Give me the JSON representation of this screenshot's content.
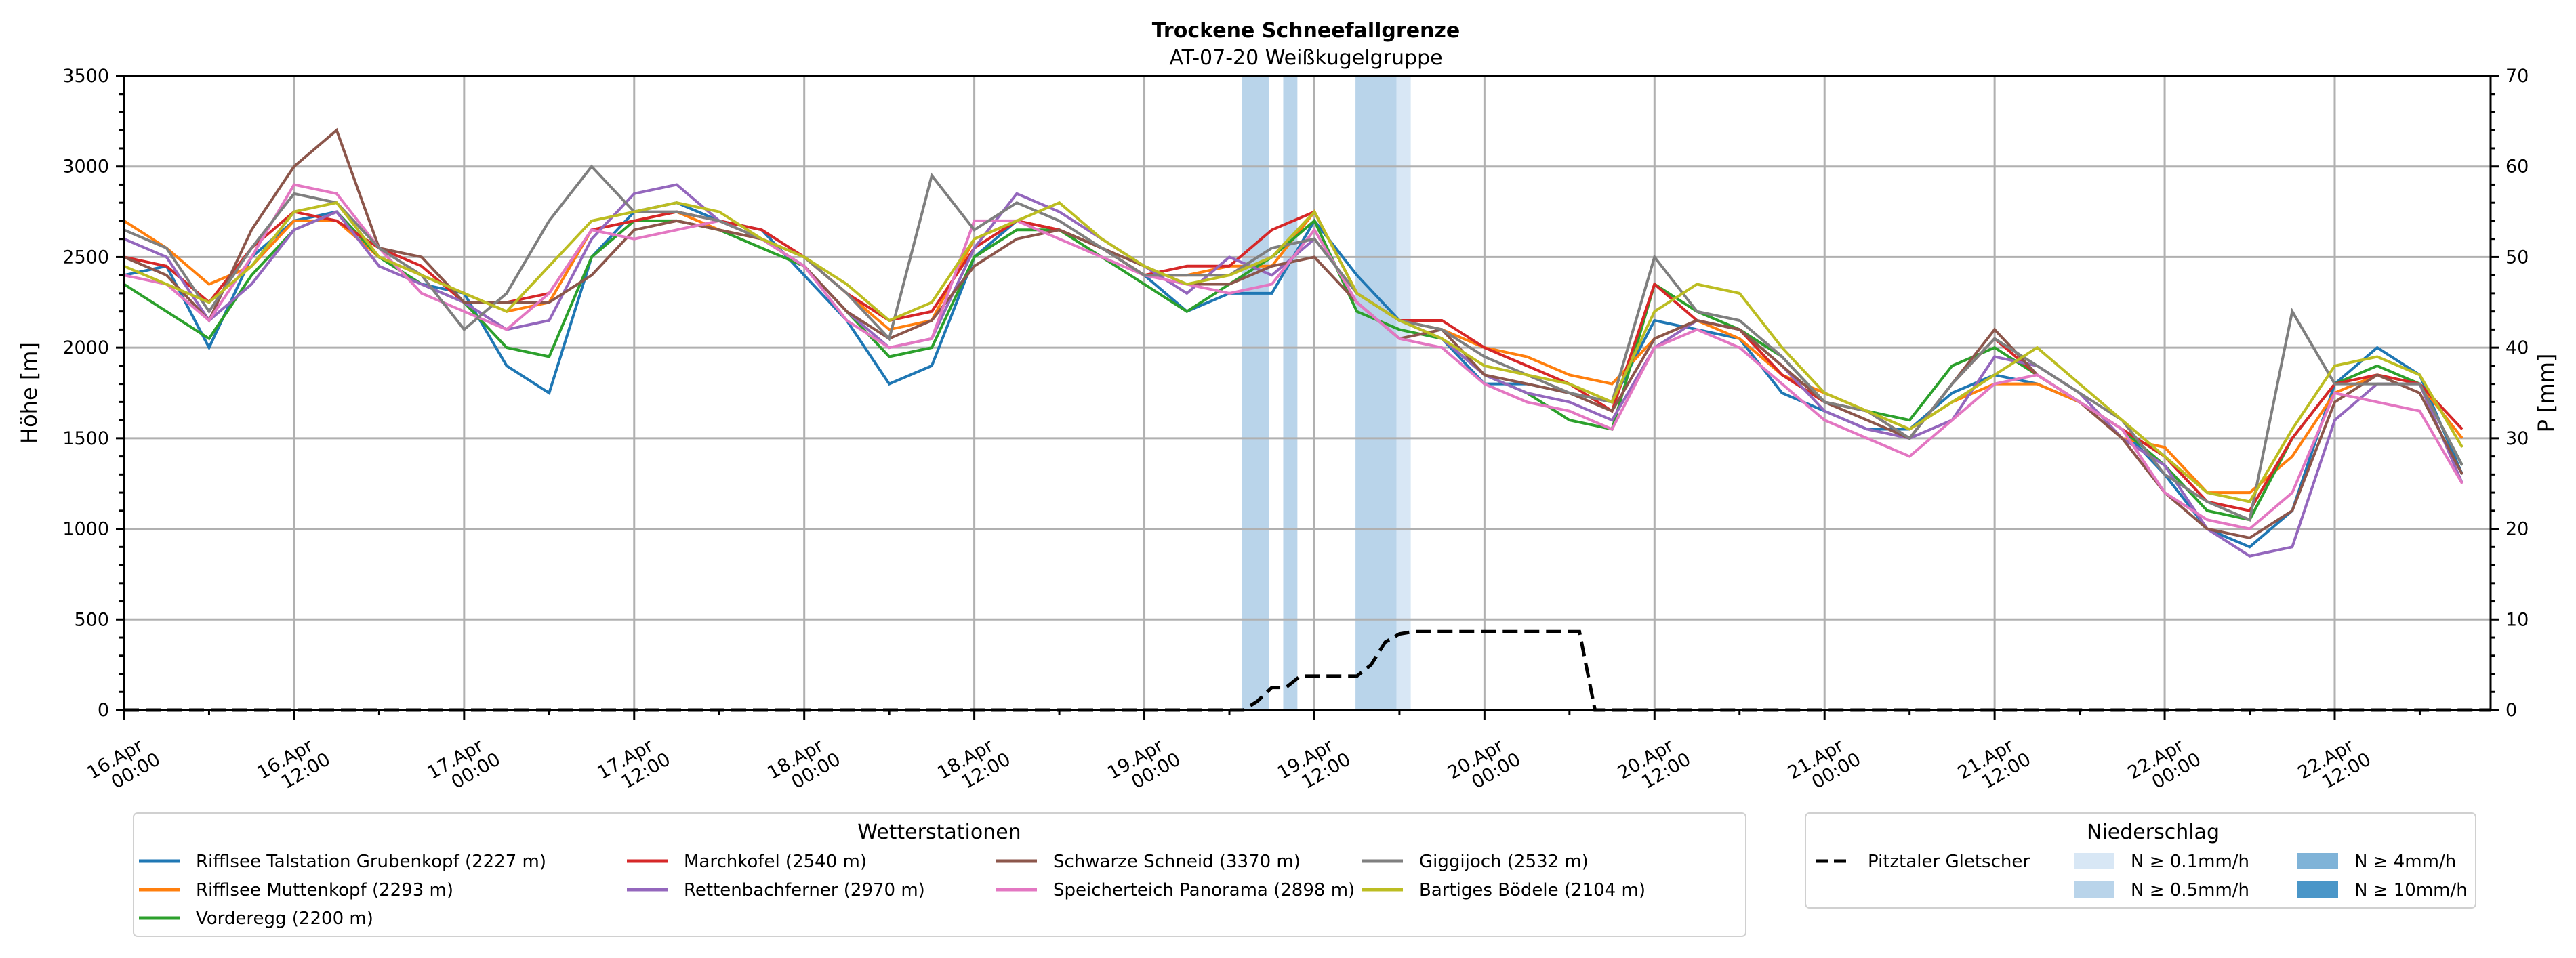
{
  "chart_data": {
    "type": "line",
    "title": "Trockene Schneefallgrenze",
    "subtitle": "AT-07-20 Weißkugelgruppe",
    "ylabel": "Höhe [m]",
    "y2label": "P [mm]",
    "ylim": [
      0,
      3500
    ],
    "y2lim": [
      0,
      70
    ],
    "yticks": [
      0,
      500,
      1000,
      1500,
      2000,
      2500,
      3000,
      3500
    ],
    "y2ticks": [
      0,
      10,
      20,
      30,
      40,
      50,
      60,
      70
    ],
    "grid": true,
    "x_unit": "hours since 16.Apr 00:00",
    "xlim_hours": [
      0,
      167
    ],
    "xticks": [
      {
        "hours": 0,
        "label": [
          "16.Apr",
          "00:00"
        ]
      },
      {
        "hours": 12,
        "label": [
          "16.Apr",
          "12:00"
        ]
      },
      {
        "hours": 24,
        "label": [
          "17.Apr",
          "00:00"
        ]
      },
      {
        "hours": 36,
        "label": [
          "17.Apr",
          "12:00"
        ]
      },
      {
        "hours": 48,
        "label": [
          "18.Apr",
          "00:00"
        ]
      },
      {
        "hours": 60,
        "label": [
          "18.Apr",
          "12:00"
        ]
      },
      {
        "hours": 72,
        "label": [
          "19.Apr",
          "00:00"
        ]
      },
      {
        "hours": 84,
        "label": [
          "19.Apr",
          "12:00"
        ]
      },
      {
        "hours": 96,
        "label": [
          "20.Apr",
          "00:00"
        ]
      },
      {
        "hours": 108,
        "label": [
          "20.Apr",
          "12:00"
        ]
      },
      {
        "hours": 120,
        "label": [
          "21.Apr",
          "00:00"
        ]
      },
      {
        "hours": 132,
        "label": [
          "21.Apr",
          "12:00"
        ]
      },
      {
        "hours": 144,
        "label": [
          "22.Apr",
          "00:00"
        ]
      },
      {
        "hours": 156,
        "label": [
          "22.Apr",
          "12:00"
        ]
      }
    ],
    "x_hours": [
      0,
      3,
      6,
      9,
      12,
      15,
      18,
      21,
      24,
      27,
      30,
      33,
      36,
      39,
      42,
      45,
      48,
      51,
      54,
      57,
      60,
      63,
      66,
      69,
      72,
      75,
      78,
      81,
      84,
      87,
      90,
      93,
      96,
      99,
      102,
      105,
      108,
      111,
      114,
      117,
      120,
      123,
      126,
      129,
      132,
      135,
      138,
      141,
      144,
      147,
      150,
      153,
      156,
      159,
      162,
      165
    ],
    "series": [
      {
        "name": "Rifflsee Talstation Grubenkopf (2227 m)",
        "color": "#1f77b4",
        "values": [
          2400,
          2450,
          2000,
          2500,
          2700,
          2750,
          2500,
          2350,
          2300,
          1900,
          1750,
          2500,
          2750,
          2800,
          2700,
          2650,
          2400,
          2150,
          1800,
          1900,
          2500,
          2700,
          2650,
          2550,
          2400,
          2200,
          2300,
          2300,
          2700,
          2400,
          2150,
          2050,
          1800,
          1800,
          1750,
          1700,
          2150,
          2100,
          2050,
          1750,
          1650,
          1550,
          1550,
          1750,
          1850,
          1800,
          1700,
          1550,
          1300,
          1000,
          900,
          1100,
          1800,
          2000,
          1850,
          1300
        ]
      },
      {
        "name": "Rifflsee Muttenkopf (2293 m)",
        "color": "#ff7f0e",
        "values": [
          2700,
          2550,
          2350,
          2450,
          2700,
          2700,
          2500,
          2400,
          2300,
          2200,
          2250,
          2650,
          2700,
          2750,
          2650,
          2600,
          2500,
          2300,
          2100,
          2150,
          2600,
          2700,
          2650,
          2550,
          2400,
          2400,
          2450,
          2450,
          2750,
          2300,
          2150,
          2100,
          2000,
          1950,
          1850,
          1800,
          2050,
          2150,
          2050,
          1850,
          1750,
          1650,
          1550,
          1700,
          1800,
          1800,
          1700,
          1500,
          1450,
          1200,
          1200,
          1400,
          1750,
          1850,
          1800,
          1500
        ]
      },
      {
        "name": "Vorderegg (2200 m)",
        "color": "#2ca02c",
        "values": [
          2350,
          2200,
          2050,
          2400,
          2650,
          2750,
          2500,
          2350,
          2250,
          2000,
          1950,
          2500,
          2700,
          2700,
          2650,
          2550,
          2450,
          2200,
          1950,
          2000,
          2500,
          2650,
          2650,
          2500,
          2350,
          2200,
          2350,
          2500,
          2700,
          2200,
          2100,
          2050,
          1850,
          1750,
          1600,
          1550,
          2350,
          2200,
          2100,
          1950,
          1700,
          1650,
          1600,
          1900,
          2000,
          1850,
          1700,
          1550,
          1350,
          1100,
          1050,
          1500,
          1800,
          1900,
          1800,
          1350
        ]
      },
      {
        "name": "Marchkofel (2540 m)",
        "color": "#d62728",
        "values": [
          2500,
          2450,
          2250,
          2550,
          2750,
          2700,
          2550,
          2450,
          2250,
          2250,
          2300,
          2650,
          2700,
          2750,
          2700,
          2650,
          2500,
          2300,
          2150,
          2200,
          2550,
          2700,
          2650,
          2550,
          2400,
          2450,
          2450,
          2650,
          2750,
          2300,
          2150,
          2150,
          2000,
          1900,
          1800,
          1650,
          2350,
          2150,
          2100,
          1850,
          1700,
          1650,
          1500,
          1800,
          2050,
          1850,
          1700,
          1550,
          1400,
          1150,
          1100,
          1500,
          1800,
          1850,
          1800,
          1550
        ]
      },
      {
        "name": "Rettenbachferner (2970 m)",
        "color": "#9467bd",
        "values": [
          2600,
          2500,
          2150,
          2350,
          2650,
          2750,
          2450,
          2350,
          2250,
          2100,
          2150,
          2600,
          2850,
          2900,
          2700,
          2600,
          2450,
          2200,
          2000,
          2050,
          2550,
          2850,
          2750,
          2600,
          2450,
          2300,
          2500,
          2400,
          2600,
          2300,
          2150,
          2050,
          1850,
          1750,
          1700,
          1600,
          2000,
          2150,
          2100,
          1900,
          1650,
          1550,
          1500,
          1600,
          1950,
          1900,
          1750,
          1500,
          1350,
          1000,
          850,
          900,
          1600,
          1800,
          1800,
          1250
        ]
      },
      {
        "name": "Schwarze Schneid (3370 m)",
        "color": "#8c564b",
        "values": [
          2500,
          2400,
          2150,
          2650,
          3000,
          3200,
          2550,
          2500,
          2250,
          2250,
          2250,
          2400,
          2650,
          2700,
          2650,
          2600,
          2450,
          2200,
          2050,
          2150,
          2450,
          2600,
          2650,
          2550,
          2450,
          2350,
          2350,
          2450,
          2500,
          2250,
          2050,
          2100,
          1850,
          1800,
          1750,
          1650,
          2050,
          2150,
          2100,
          1900,
          1700,
          1600,
          1500,
          1800,
          2100,
          1850,
          1700,
          1500,
          1200,
          1000,
          950,
          1100,
          1700,
          1850,
          1750,
          1300
        ]
      },
      {
        "name": "Speicherteich Panorama (2898 m)",
        "color": "#e377c2",
        "values": [
          2400,
          2350,
          2150,
          2500,
          2900,
          2850,
          2550,
          2300,
          2200,
          2100,
          2300,
          2650,
          2600,
          2650,
          2700,
          2600,
          2450,
          2150,
          2000,
          2050,
          2700,
          2700,
          2600,
          2500,
          2400,
          2350,
          2300,
          2350,
          2650,
          2250,
          2050,
          2000,
          1800,
          1700,
          1650,
          1550,
          2000,
          2100,
          2000,
          1800,
          1600,
          1500,
          1400,
          1600,
          1800,
          1850,
          1700,
          1550,
          1200,
          1050,
          1000,
          1200,
          1750,
          1700,
          1650,
          1250
        ]
      },
      {
        "name": "Giggijoch (2532 m)",
        "color": "#7f7f7f",
        "values": [
          2650,
          2550,
          2200,
          2550,
          2850,
          2800,
          2550,
          2400,
          2100,
          2300,
          2700,
          3000,
          2750,
          2750,
          2700,
          2600,
          2500,
          2300,
          2050,
          2950,
          2650,
          2800,
          2700,
          2550,
          2400,
          2400,
          2400,
          2550,
          2600,
          2300,
          2150,
          2100,
          1950,
          1850,
          1750,
          1700,
          2500,
          2200,
          2150,
          1950,
          1700,
          1650,
          1500,
          1800,
          2050,
          1900,
          1750,
          1600,
          1300,
          1150,
          1050,
          2200,
          1800,
          1800,
          1800,
          1350
        ]
      },
      {
        "name": "Bartiges Bödele (2104 m)",
        "color": "#bcbd22",
        "values": [
          2450,
          2350,
          2250,
          2450,
          2750,
          2800,
          2500,
          2400,
          2300,
          2200,
          2450,
          2700,
          2750,
          2800,
          2750,
          2600,
          2500,
          2350,
          2150,
          2250,
          2600,
          2700,
          2800,
          2600,
          2450,
          2350,
          2400,
          2500,
          2750,
          2300,
          2150,
          2050,
          1900,
          1850,
          1800,
          1700,
          2200,
          2350,
          2300,
          2000,
          1750,
          1650,
          1550,
          1700,
          1850,
          2000,
          1800,
          1600,
          1400,
          1200,
          1150,
          1550,
          1900,
          1950,
          1850,
          1450
        ]
      }
    ],
    "precip_series": {
      "name": "Pitztaler Gletscher",
      "style": "dashed",
      "color": "#000000",
      "axis": "right",
      "points": [
        [
          0,
          0
        ],
        [
          79,
          0
        ],
        [
          80,
          1
        ],
        [
          81,
          2.5
        ],
        [
          82,
          2.5
        ],
        [
          83,
          3.75
        ],
        [
          87,
          3.75
        ],
        [
          88,
          5
        ],
        [
          89,
          7.5
        ],
        [
          90,
          8.4
        ],
        [
          91,
          8.66
        ],
        [
          102.7,
          8.66
        ],
        [
          103.8,
          0
        ],
        [
          167,
          0
        ]
      ]
    },
    "precip_bands": [
      {
        "start_h": 78.9,
        "end_h": 80.8,
        "level": "N ≥ 0.5mm/h"
      },
      {
        "start_h": 81.8,
        "end_h": 82.8,
        "level": "N ≥ 0.5mm/h"
      },
      {
        "start_h": 86.9,
        "end_h": 89.8,
        "level": "N ≥ 0.5mm/h"
      },
      {
        "start_h": 89.8,
        "end_h": 90.8,
        "level": "N ≥ 0.1mm/h"
      }
    ],
    "legend_stations": {
      "title": "Wetterstationen",
      "placement": "bottom-left"
    },
    "legend_precip": {
      "title": "Niederschlag",
      "placement": "bottom-right",
      "line_label": "Pitztaler Gletscher",
      "levels": [
        {
          "label": "N ≥ 0.1mm/h",
          "color": "#d8e7f5"
        },
        {
          "label": "N ≥ 0.5mm/h",
          "color": "#b9d4ea"
        },
        {
          "label": "N ≥ 4mm/h",
          "color": "#7fb3d8"
        },
        {
          "label": "N ≥ 10mm/h",
          "color": "#4a96c8"
        }
      ]
    }
  }
}
